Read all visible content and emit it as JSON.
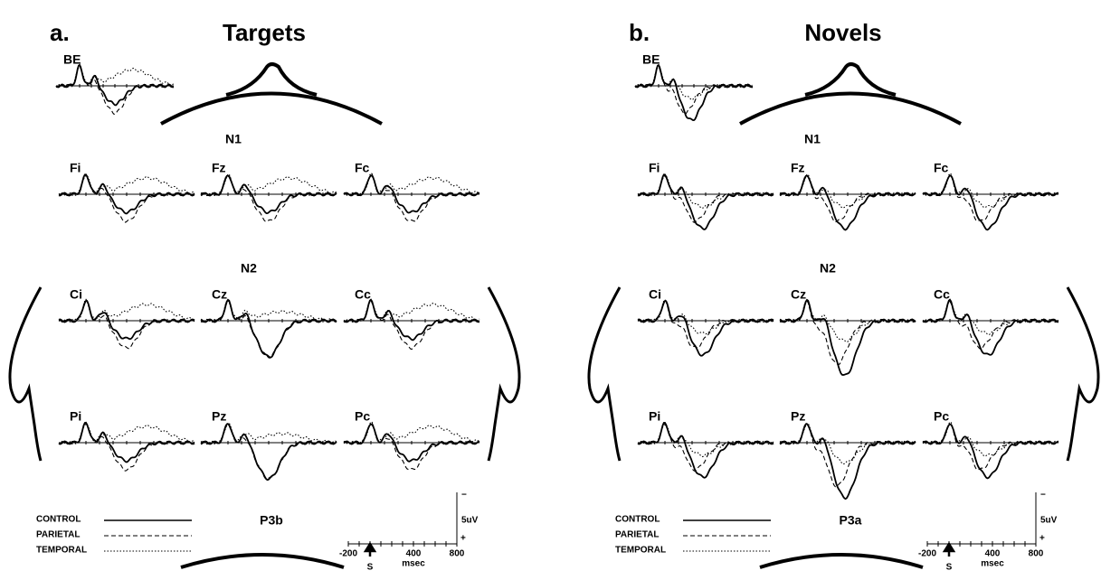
{
  "panels": [
    {
      "letter": "a.",
      "title": "Targets",
      "electrodes": [
        "BE",
        "Fi",
        "Fz",
        "Fc",
        "Ci",
        "Cz",
        "Cc",
        "Pi",
        "Pz",
        "Pc"
      ],
      "annotations": [
        "N1",
        "N2",
        "P3b"
      ],
      "legend": [
        "CONTROL",
        "PARIETAL",
        "TEMPORAL"
      ],
      "scale": {
        "top": "−",
        "unit": "5uV",
        "bottom": "+",
        "ticks": [
          "-200",
          "400",
          "800"
        ],
        "time_unit": "msec",
        "stimulus": "S"
      }
    },
    {
      "letter": "b.",
      "title": "Novels",
      "electrodes": [
        "BE",
        "Fi",
        "Fz",
        "Fc",
        "Ci",
        "Cz",
        "Cc",
        "Pi",
        "Pz",
        "Pc"
      ],
      "annotations": [
        "N1",
        "N2",
        "P3a"
      ],
      "legend": [
        "CONTROL",
        "PARIETAL",
        "TEMPORAL"
      ],
      "scale": {
        "top": "−",
        "unit": "5uV",
        "bottom": "+",
        "ticks": [
          "-200",
          "400",
          "800"
        ],
        "time_unit": "msec",
        "stimulus": "S"
      }
    }
  ]
}
